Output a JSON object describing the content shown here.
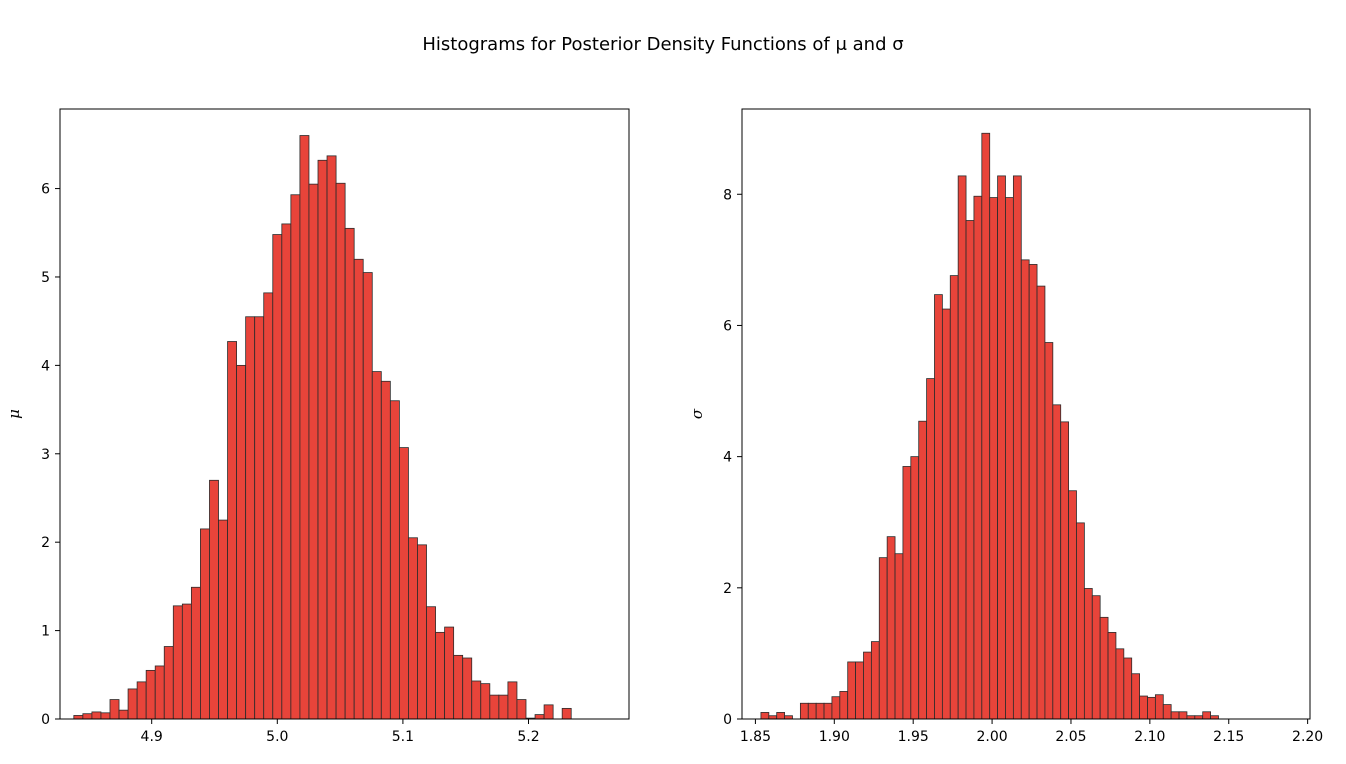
{
  "figure": {
    "title": "Histograms for Posterior Density Functions of μ and σ"
  },
  "chart_data": [
    {
      "type": "bar",
      "ylabel": "μ",
      "xlabel": "",
      "xlim": [
        4.827,
        5.28
      ],
      "ylim": [
        0,
        6.9
      ],
      "xticks": [
        4.9,
        5.0,
        5.1,
        5.2
      ],
      "xtick_labels": [
        "4.9",
        "5.0",
        "5.1",
        "5.2"
      ],
      "yticks": [
        0,
        1,
        2,
        3,
        4,
        5,
        6
      ],
      "ytick_labels": [
        "0",
        "1",
        "2",
        "3",
        "4",
        "5",
        "6"
      ],
      "grid": false,
      "bar_color": "#e8443a",
      "edge_color": "#2b2b2b",
      "bin_start": 4.838,
      "bin_width": 0.0072,
      "values": [
        0.04,
        0.06,
        0.08,
        0.07,
        0.22,
        0.1,
        0.34,
        0.42,
        0.55,
        0.6,
        0.82,
        1.28,
        1.3,
        1.49,
        2.15,
        2.7,
        2.25,
        4.27,
        4.0,
        4.55,
        4.55,
        4.82,
        5.48,
        5.6,
        5.93,
        6.6,
        6.05,
        6.32,
        6.37,
        6.06,
        5.55,
        5.2,
        5.05,
        3.93,
        3.82,
        3.6,
        3.07,
        2.05,
        1.97,
        1.27,
        0.98,
        1.04,
        0.72,
        0.69,
        0.43,
        0.4,
        0.27,
        0.27,
        0.42,
        0.22,
        0.01,
        0.05,
        0.16,
        0.0,
        0.12
      ]
    },
    {
      "type": "bar",
      "ylabel": "σ",
      "xlabel": "",
      "xlim": [
        1.8415,
        2.2015
      ],
      "ylim": [
        0,
        9.3
      ],
      "xticks": [
        1.85,
        1.9,
        1.95,
        2.0,
        2.05,
        2.1,
        2.15,
        2.2
      ],
      "xtick_labels": [
        "1.85",
        "1.90",
        "1.95",
        "2.00",
        "2.05",
        "2.10",
        "2.15",
        "2.20"
      ],
      "yticks": [
        0,
        2,
        4,
        6,
        8
      ],
      "ytick_labels": [
        "0",
        "2",
        "4",
        "6",
        "8"
      ],
      "grid": false,
      "bar_color": "#e8443a",
      "edge_color": "#2b2b2b",
      "bin_start": 1.8535,
      "bin_width": 0.005,
      "values": [
        0.1,
        0.05,
        0.1,
        0.05,
        0.0,
        0.24,
        0.24,
        0.24,
        0.24,
        0.34,
        0.42,
        0.87,
        0.87,
        1.02,
        1.18,
        2.46,
        2.78,
        2.52,
        3.85,
        4.0,
        4.54,
        5.19,
        6.47,
        6.25,
        6.76,
        8.28,
        7.6,
        7.97,
        8.93,
        7.95,
        8.28,
        7.95,
        8.28,
        7.0,
        6.93,
        6.6,
        5.74,
        4.79,
        4.53,
        3.48,
        2.99,
        1.99,
        1.88,
        1.55,
        1.32,
        1.07,
        0.93,
        0.69,
        0.35,
        0.33,
        0.37,
        0.22,
        0.11,
        0.11,
        0.05,
        0.05,
        0.11,
        0.05,
        0.0,
        0.0,
        0.0,
        0.0,
        0.0
      ]
    }
  ]
}
